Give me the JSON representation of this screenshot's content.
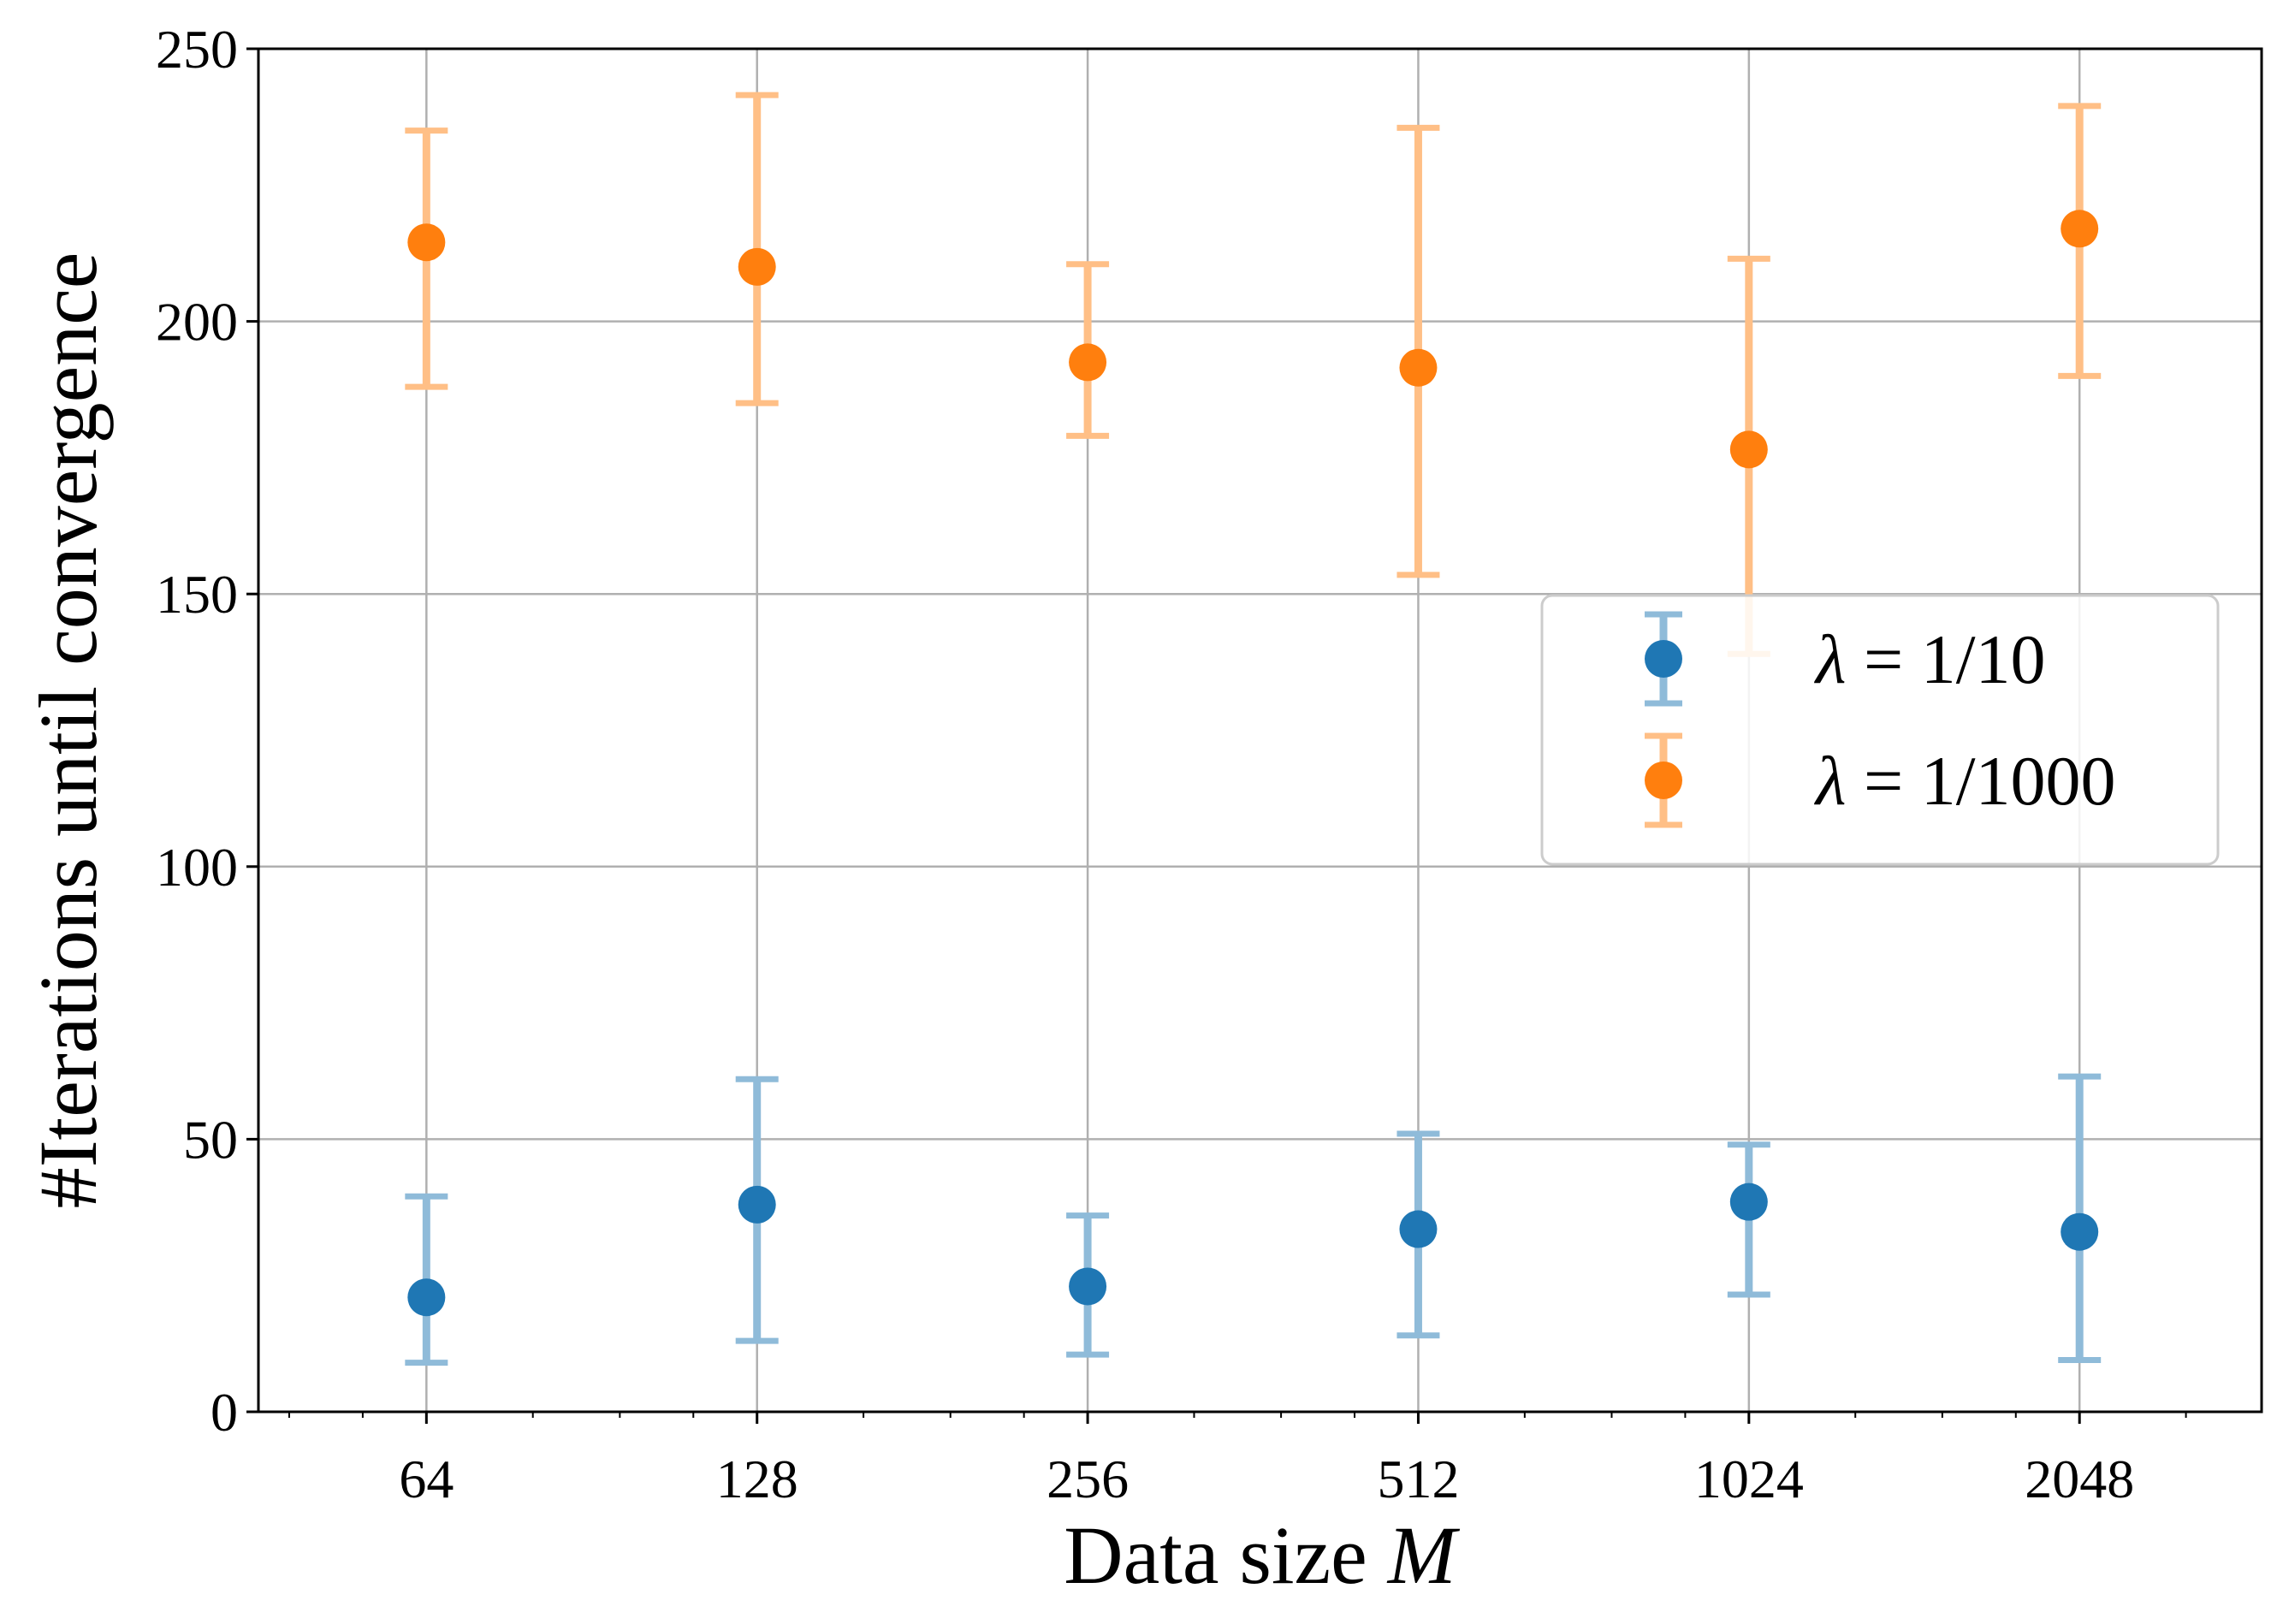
{
  "chart_data": {
    "type": "scatter",
    "title": "",
    "xlabel": "Data size ",
    "xlabel_var": "M",
    "ylabel": "#Iterations until convergence",
    "x_scale": "log2",
    "x": [
      64,
      128,
      256,
      512,
      1024,
      2048
    ],
    "x_tick_labels": [
      "64",
      "128",
      "256",
      "512",
      "1024",
      "2048"
    ],
    "xlim": [
      45,
      3000
    ],
    "ylim": [
      0,
      250
    ],
    "y_ticks": [
      0,
      50,
      100,
      150,
      200,
      250
    ],
    "y_tick_labels": [
      "0",
      "50",
      "100",
      "150",
      "200",
      "250"
    ],
    "grid": true,
    "legend_position": "center-right",
    "series": [
      {
        "name": "λ = 1/10",
        "legend_symbol": "λ",
        "legend_value": "= 1/10",
        "color": "#1f77b4",
        "errcolor": "#8fbbd9",
        "values": [
          21,
          38,
          23,
          33.5,
          38.5,
          33
        ],
        "err_low": [
          9,
          13,
          10.5,
          14,
          21.5,
          9.5
        ],
        "err_high": [
          39.5,
          61,
          36,
          51,
          49,
          61.5
        ]
      },
      {
        "name": "λ = 1/1000",
        "legend_symbol": "λ",
        "legend_value": "= 1/1000",
        "color": "#ff7f0e",
        "errcolor": "#ffbf86",
        "values": [
          214.5,
          210,
          192.5,
          191.5,
          176.5,
          217
        ],
        "err_low": [
          188,
          185,
          179,
          153.5,
          139,
          190
        ],
        "err_high": [
          235,
          241.5,
          210.5,
          235.5,
          211.5,
          239.5
        ]
      }
    ]
  }
}
